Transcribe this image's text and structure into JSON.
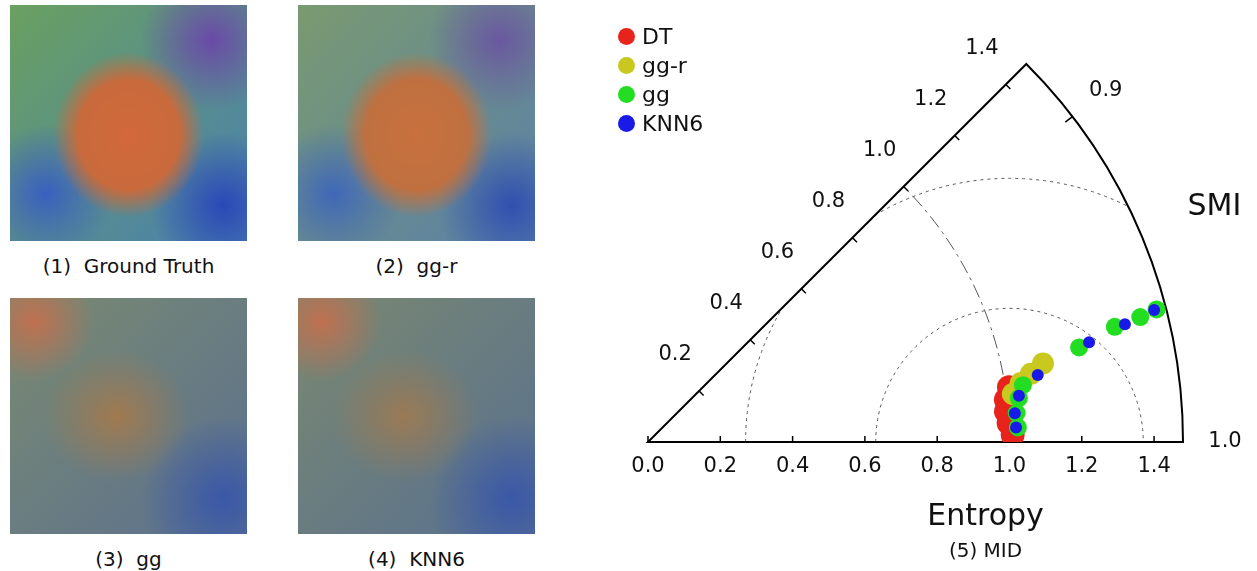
{
  "panels": [
    {
      "caption": "(1)  Ground Truth"
    },
    {
      "caption": "(2)  gg-r"
    },
    {
      "caption": "(3)  gg"
    },
    {
      "caption": "(4)  KNN6"
    }
  ],
  "chart_data": {
    "type": "taylor",
    "title": "(5) MID",
    "xlabel": "Entropy",
    "ylabel": "SMI",
    "xlim": [
      0,
      1.48
    ],
    "xticks": [
      {
        "value": 0,
        "label": "0.0"
      },
      0.2,
      0.4,
      0.6,
      0.8,
      {
        "value": 1,
        "label": "1.0"
      },
      1.2,
      1.4
    ],
    "ylim": [
      1.0,
      0.88
    ],
    "yticks": [
      0.9,
      {
        "value": 1,
        "label": "1.0"
      }
    ],
    "legend": "upper left",
    "arcs": [
      {
        "center": 0,
        "radius": 1.0,
        "line_style": "dashdot"
      },
      {
        "center": 1.0,
        "radius": 0.37,
        "line_style": "dotted"
      },
      {
        "center": 1.0,
        "radius": 0.73,
        "line_style": "dotted"
      }
    ],
    "series": [
      {
        "name": "DT",
        "color": "#e8231b",
        "marker": "circle",
        "x": [
          1.01,
          0.997,
          0.994,
          0.999,
          1.009
        ],
        "values": [
          0.977,
          0.982,
          0.987,
          0.992,
          0.997
        ]
      },
      {
        "name": "gg-r",
        "color": "#c8c81e",
        "marker": "circle",
        "x": [
          1.114,
          1.076,
          1.044,
          1.018
        ],
        "values": [
          0.97,
          0.973,
          0.976,
          0.98
        ]
      },
      {
        "name": "gg",
        "color": "#22dd22",
        "marker": "circle",
        "x": [
          1.454,
          1.405,
          1.33,
          1.221,
          1.049,
          1.033,
          1.023,
          1.024
        ],
        "values": [
          0.961,
          0.962,
          0.963,
          0.967,
          0.977,
          0.982,
          0.988,
          0.994
        ]
      },
      {
        "name": "KNN6",
        "color": "#1a1ae8",
        "marker": "circle",
        "x": [
          1.447,
          1.359,
          1.251,
          1.094,
          1.034,
          1.018,
          1.019
        ],
        "values": [
          0.961,
          0.963,
          0.966,
          0.974,
          0.981,
          0.988,
          0.994
        ]
      }
    ]
  }
}
